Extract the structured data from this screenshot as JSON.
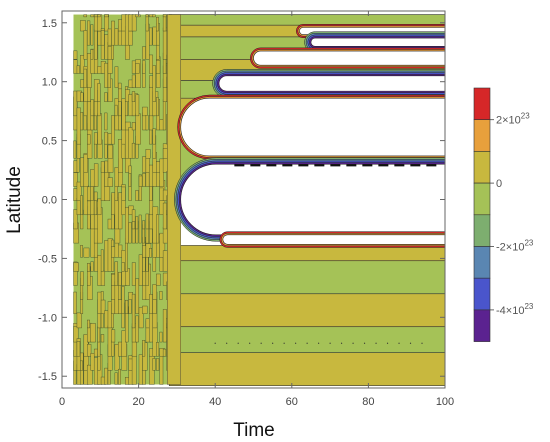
{
  "chart_data": {
    "type": "heatmap",
    "xlabel": "Time",
    "ylabel": "Latitude",
    "xlim": [
      0,
      100
    ],
    "ylim": [
      -1.6,
      1.6
    ],
    "x_ticks": [
      0,
      20,
      40,
      60,
      80,
      100
    ],
    "y_ticks": [
      -1.5,
      -1.0,
      -0.5,
      0.0,
      0.5,
      1.0,
      1.5
    ],
    "x_tick_labels": [
      "0",
      "20",
      "40",
      "60",
      "80",
      "100"
    ],
    "y_tick_labels": [
      "-1.5",
      "-1.0",
      "-0.5",
      "0.0",
      "0.5",
      "1.0",
      "1.5"
    ],
    "legend": {
      "placement": "right",
      "labels": [
        {
          "mant": "2",
          "exp": "23",
          "value": 2e+23
        },
        {
          "mant": "0",
          "exp": "",
          "value": 0
        },
        {
          "mant": "-2",
          "exp": "23",
          "value": -2e+23
        },
        {
          "mant": "-4",
          "exp": "23",
          "value": -4e+23
        }
      ],
      "colors_top_to_bottom": [
        "#d62728",
        "#e8a03c",
        "#c8b83e",
        "#a5c257",
        "#7dae6f",
        "#5a86b2",
        "#4a55cc",
        "#5b2290"
      ]
    },
    "background_regimes": [
      {
        "time_range": [
          3,
          28
        ],
        "state": "mixed small-amplitude noise near 0"
      },
      {
        "time_range": [
          28,
          100
        ],
        "state": "zonal bands alternating between slightly positive and slightly negative"
      }
    ],
    "bands_positive": [
      [
        1.38,
        1.48
      ],
      [
        1.01,
        1.19
      ],
      [
        0.49,
        0.86
      ],
      [
        0.0,
        0.17
      ],
      [
        -0.39,
        -0.52
      ],
      [
        -0.8,
        -1.08
      ],
      [
        -1.3,
        -1.58
      ]
    ],
    "bands_negative": [
      [
        1.48,
        1.57
      ],
      [
        1.19,
        1.38
      ],
      [
        0.86,
        1.01
      ],
      [
        0.17,
        0.49
      ],
      [
        -0.17,
        0.0
      ],
      [
        -0.52,
        -0.8
      ],
      [
        -1.08,
        -1.3
      ]
    ],
    "blowup_regions": [
      {
        "lat_range": [
          1.4,
          1.46
        ],
        "time_start": 62
      },
      {
        "lat_range": [
          1.3,
          1.37
        ],
        "time_start": 65
      },
      {
        "lat_range": [
          1.14,
          1.26
        ],
        "time_start": 50
      },
      {
        "lat_range": [
          0.92,
          1.05
        ],
        "time_start": 41
      },
      {
        "lat_range": [
          0.37,
          0.86
        ],
        "time_start": 31
      },
      {
        "lat_range": [
          -0.3,
          0.3
        ],
        "time_start": 31
      },
      {
        "lat_range": [
          -0.38,
          -0.3
        ],
        "time_start": 42
      }
    ],
    "annotations": [
      {
        "kind": "dashed contour",
        "lat": 0.29,
        "time_range": [
          45,
          99
        ]
      }
    ]
  }
}
